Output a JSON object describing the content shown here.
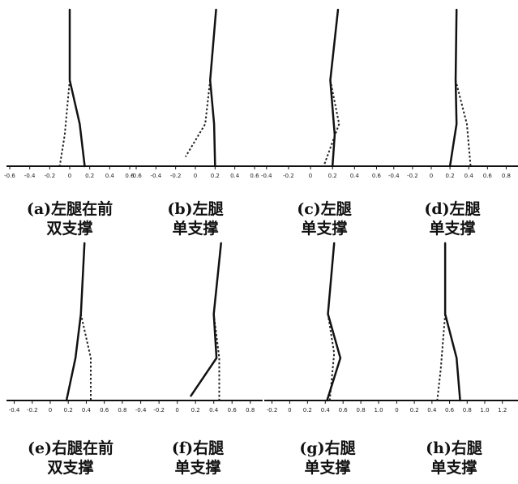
{
  "panels": [
    {
      "line1": "(a)左腿在前",
      "line2": "双支撑",
      "ticks": [
        "-0.6",
        "-0.4",
        "-0.2",
        "0",
        "0.2",
        "0.4",
        "0.6"
      ],
      "xrange": [
        -0.6,
        0.6
      ],
      "solid": [
        [
          0,
          1.0
        ],
        [
          0,
          0.55
        ],
        [
          0.1,
          0.27
        ],
        [
          0.15,
          0
        ]
      ],
      "dashed": [
        [
          0,
          0.55
        ],
        [
          -0.05,
          0.2
        ],
        [
          -0.1,
          0
        ]
      ]
    },
    {
      "line1": "(b)左腿",
      "line2": "单支撑",
      "ticks": [
        "-0.6",
        "-0.4",
        "-0.2",
        "0",
        "0.2",
        "0.4",
        "0.6"
      ],
      "xrange": [
        -0.6,
        0.6
      ],
      "solid": [
        [
          0.21,
          1.0
        ],
        [
          0.15,
          0.55
        ],
        [
          0.19,
          0.27
        ],
        [
          0.2,
          0
        ]
      ],
      "dashed": [
        [
          0.15,
          0.55
        ],
        [
          0.1,
          0.27
        ],
        [
          -0.1,
          0.06
        ]
      ]
    },
    {
      "line1": "(c)左腿",
      "line2": "单支撑",
      "ticks": [
        "-0.4",
        "-0.2",
        "0",
        "0.2",
        "0.4",
        "0.6"
      ],
      "xrange": [
        -0.45,
        0.7
      ],
      "solid": [
        [
          0.25,
          1.0
        ],
        [
          0.18,
          0.55
        ],
        [
          0.22,
          0.2
        ],
        [
          0.2,
          0
        ]
      ],
      "dashed": [
        [
          0.18,
          0.55
        ],
        [
          0.26,
          0.27
        ],
        [
          0.12,
          0
        ]
      ]
    },
    {
      "line1": "(d)左腿",
      "line2": "单支撑",
      "ticks": [
        "-0.4",
        "-0.2",
        "0",
        "0.2",
        "0.4",
        "0.6",
        "0.8"
      ],
      "xrange": [
        -0.45,
        0.9
      ],
      "solid": [
        [
          0.27,
          1.0
        ],
        [
          0.26,
          0.55
        ],
        [
          0.27,
          0.27
        ],
        [
          0.2,
          0
        ]
      ],
      "dashed": [
        [
          0.26,
          0.55
        ],
        [
          0.38,
          0.27
        ],
        [
          0.42,
          0
        ]
      ]
    },
    {
      "line1": "(e)右腿在前",
      "line2": "双支撑",
      "ticks": [
        "-0.4",
        "-0.2",
        "0",
        "0.2",
        "0.4",
        "0.6",
        "0.8"
      ],
      "xrange": [
        -0.45,
        0.9
      ],
      "solid": [
        [
          0.38,
          1.0
        ],
        [
          0.34,
          0.55
        ],
        [
          0.28,
          0.27
        ],
        [
          0.18,
          0
        ]
      ],
      "dashed": [
        [
          0.34,
          0.55
        ],
        [
          0.45,
          0.27
        ],
        [
          0.45,
          0
        ]
      ]
    },
    {
      "line1": "(f)右腿",
      "line2": "单支撑",
      "ticks": [
        "-0.4",
        "-0.2",
        "0",
        "0.2",
        "0.4",
        "0.6",
        "0.8"
      ],
      "xrange": [
        -0.45,
        0.9
      ],
      "solid": [
        [
          0.48,
          1.0
        ],
        [
          0.4,
          0.55
        ],
        [
          0.43,
          0.27
        ],
        [
          0.15,
          0.03
        ]
      ],
      "dashed": [
        [
          0.4,
          0.55
        ],
        [
          0.46,
          0.27
        ],
        [
          0.46,
          0
        ]
      ]
    },
    {
      "line1": "(g)右腿",
      "line2": "单支撑",
      "ticks": [
        "-0.2",
        "0",
        "0.2",
        "0.4",
        "0.6",
        "0.8",
        "1.0"
      ],
      "xrange": [
        -0.25,
        1.1
      ],
      "solid": [
        [
          0.5,
          1.0
        ],
        [
          0.43,
          0.55
        ],
        [
          0.57,
          0.27
        ],
        [
          0.42,
          0
        ]
      ],
      "dashed": [
        [
          0.43,
          0.55
        ],
        [
          0.5,
          0.3
        ],
        [
          0.45,
          0
        ]
      ]
    },
    {
      "line1": "(h)右腿",
      "line2": "单支撑",
      "ticks": [
        "0",
        "0.2",
        "0.4",
        "0.6",
        "0.8",
        "1.0",
        "1.2"
      ],
      "xrange": [
        -0.05,
        1.35
      ],
      "solid": [
        [
          0.55,
          1.0
        ],
        [
          0.55,
          0.55
        ],
        [
          0.68,
          0.27
        ],
        [
          0.72,
          0
        ]
      ],
      "dashed": [
        [
          0.55,
          0.55
        ],
        [
          0.5,
          0.2
        ],
        [
          0.46,
          0
        ]
      ]
    }
  ]
}
